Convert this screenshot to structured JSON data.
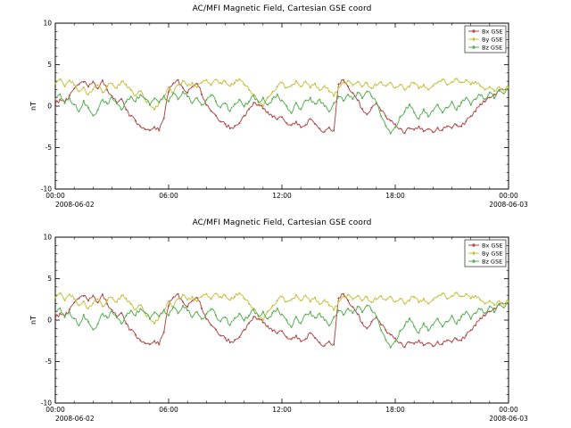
{
  "figure": {
    "background": "#ffffff"
  },
  "chart_data": [
    {
      "type": "line",
      "title": "AC/MFI  Magnetic Field, Cartesian GSE coord",
      "ylabel": "nT",
      "ylim": [
        -10,
        10
      ],
      "y_major_ticks": [
        "10",
        "5",
        "0",
        "-5",
        "-10"
      ],
      "x_major_ticks": [
        "00:00",
        "06:00",
        "12:00",
        "18:00",
        "00:00"
      ],
      "x_major_hours": [
        0,
        6,
        12,
        18,
        24
      ],
      "x_start_date": "2008-06-02",
      "x_end_date": "2008-06-03",
      "x_start_hour": 0,
      "x_step_hours": 0.25,
      "grid": false,
      "legend_position": "top-right",
      "series": [
        {
          "name": "Bx GSE",
          "color": "#b34a48",
          "values": [
            0.3,
            0.8,
            0.5,
            1.2,
            2.2,
            2.6,
            3.0,
            2.4,
            2.9,
            2.2,
            3.1,
            2.0,
            1.2,
            0.4,
            0.8,
            -0.5,
            -1.2,
            -1.8,
            -2.4,
            -2.8,
            -3.0,
            -2.6,
            -2.9,
            -1.5,
            1.8,
            2.8,
            3.1,
            2.2,
            1.6,
            2.4,
            2.7,
            1.5,
            0.2,
            -0.6,
            -1.2,
            -1.8,
            -2.2,
            -2.6,
            -2.4,
            -2.0,
            -1.2,
            -0.4,
            0.4,
            0.2,
            -0.3,
            -0.8,
            -1.2,
            -1.6,
            -1.4,
            -2.0,
            -2.4,
            -1.8,
            -2.6,
            -2.2,
            -1.6,
            -2.2,
            -2.8,
            -3.1,
            -2.6,
            -2.9,
            2.6,
            3.1,
            2.4,
            1.6,
            0.8,
            -0.4,
            -1.0,
            -0.2,
            0.4,
            -0.5,
            -1.2,
            -1.8,
            -2.2,
            -2.8,
            -3.2,
            -2.6,
            -2.9,
            -2.5,
            -3.0,
            -2.8,
            -3.1,
            -2.7,
            -2.9,
            -2.5,
            -2.6,
            -2.2,
            -2.4,
            -1.8,
            -1.2,
            -0.6,
            0.2,
            0.6,
            1.0,
            1.4,
            1.8,
            2.0,
            2.2
          ]
        },
        {
          "name": "By GSE",
          "color": "#c6c23f",
          "values": [
            2.8,
            3.2,
            2.4,
            3.0,
            2.6,
            1.8,
            2.2,
            1.4,
            2.0,
            2.6,
            1.6,
            2.4,
            2.8,
            2.2,
            3.0,
            2.6,
            2.0,
            1.2,
            1.8,
            0.8,
            0.2,
            -0.4,
            0.4,
            1.2,
            2.2,
            1.6,
            2.6,
            3.0,
            2.4,
            2.8,
            2.2,
            2.9,
            3.1,
            2.6,
            3.2,
            2.8,
            3.0,
            2.4,
            2.8,
            3.2,
            2.6,
            2.0,
            1.4,
            0.6,
            0.0,
            1.0,
            1.8,
            2.4,
            2.8,
            2.2,
            2.6,
            3.0,
            2.4,
            2.9,
            2.2,
            2.7,
            2.0,
            2.5,
            1.8,
            1.2,
            2.2,
            2.8,
            3.1,
            2.6,
            3.0,
            2.4,
            2.8,
            2.2,
            2.6,
            3.0,
            2.4,
            2.8,
            2.2,
            2.6,
            2.0,
            2.4,
            2.8,
            2.2,
            2.6,
            2.0,
            2.4,
            2.9,
            3.2,
            2.6,
            3.0,
            3.3,
            2.8,
            3.1,
            2.6,
            3.0,
            2.4,
            2.0,
            2.4,
            1.8,
            2.2,
            2.0,
            2.3
          ]
        },
        {
          "name": "Bz GSE",
          "color": "#56b152",
          "values": [
            0.8,
            1.4,
            0.4,
            1.0,
            0.2,
            -0.6,
            0.6,
            -0.2,
            -1.2,
            -0.4,
            0.8,
            0.2,
            1.0,
            0.4,
            -0.4,
            0.6,
            1.2,
            0.6,
            1.4,
            0.8,
            0.2,
            1.0,
            0.4,
            1.2,
            0.6,
            1.6,
            0.8,
            1.8,
            1.2,
            0.4,
            1.0,
            0.2,
            0.8,
            1.4,
            0.6,
            -0.2,
            0.4,
            -0.6,
            0.2,
            0.8,
            0.0,
            0.6,
            1.2,
            0.4,
            1.0,
            0.2,
            0.8,
            1.4,
            0.6,
            0.0,
            -0.8,
            0.4,
            -0.4,
            0.6,
            1.0,
            0.2,
            0.8,
            0.0,
            -0.6,
            0.4,
            1.2,
            0.6,
            1.4,
            0.8,
            1.6,
            1.0,
            1.8,
            1.2,
            0.4,
            -1.2,
            -2.4,
            -3.2,
            -2.6,
            -1.4,
            -0.6,
            0.2,
            -0.8,
            -1.6,
            -0.4,
            -1.2,
            -0.6,
            0.2,
            -0.8,
            -0.2,
            0.6,
            -0.4,
            0.4,
            1.0,
            0.2,
            0.8,
            1.4,
            0.8,
            1.6,
            1.0,
            2.0,
            1.6,
            2.1
          ]
        }
      ]
    },
    {
      "type": "line",
      "title": "AC/MFI  Magnetic Field, Cartesian GSE coord",
      "ylabel": "nT",
      "ylim": [
        -10,
        10
      ],
      "y_major_ticks": [
        "10",
        "5",
        "0",
        "-5",
        "-10"
      ],
      "x_major_ticks": [
        "00:00",
        "06:00",
        "12:00",
        "18:00",
        "00:00"
      ],
      "x_major_hours": [
        0,
        6,
        12,
        18,
        24
      ],
      "x_start_date": "2008-06-02",
      "x_end_date": "2008-06-03",
      "x_start_hour": 0,
      "x_step_hours": 0.25,
      "grid": false,
      "legend_position": "top-right",
      "series": [
        {
          "name": "Bx GSE",
          "color": "#b34a48",
          "values": [
            0.3,
            0.8,
            0.5,
            1.2,
            2.2,
            2.6,
            3.0,
            2.4,
            2.9,
            2.2,
            3.1,
            2.0,
            1.2,
            0.4,
            0.8,
            -0.5,
            -1.2,
            -1.8,
            -2.4,
            -2.8,
            -3.0,
            -2.6,
            -2.9,
            -1.5,
            1.8,
            2.8,
            3.1,
            2.2,
            1.6,
            2.4,
            2.7,
            1.5,
            0.2,
            -0.6,
            -1.2,
            -1.8,
            -2.2,
            -2.6,
            -2.4,
            -2.0,
            -1.2,
            -0.4,
            0.4,
            0.2,
            -0.3,
            -0.8,
            -1.2,
            -1.6,
            -1.4,
            -2.0,
            -2.4,
            -1.8,
            -2.6,
            -2.2,
            -1.6,
            -2.2,
            -2.8,
            -3.1,
            -2.6,
            -2.9,
            2.6,
            3.1,
            2.4,
            1.6,
            0.8,
            -0.4,
            -1.0,
            -0.2,
            0.4,
            -0.5,
            -1.2,
            -1.8,
            -2.2,
            -2.8,
            -3.2,
            -2.6,
            -2.9,
            -2.5,
            -3.0,
            -2.8,
            -3.1,
            -2.7,
            -2.9,
            -2.5,
            -2.6,
            -2.2,
            -2.4,
            -1.8,
            -1.2,
            -0.6,
            0.2,
            0.6,
            1.0,
            1.4,
            1.8,
            2.0,
            2.2
          ]
        },
        {
          "name": "By GSE",
          "color": "#c6c23f",
          "values": [
            2.8,
            3.2,
            2.4,
            3.0,
            2.6,
            1.8,
            2.2,
            1.4,
            2.0,
            2.6,
            1.6,
            2.4,
            2.8,
            2.2,
            3.0,
            2.6,
            2.0,
            1.2,
            1.8,
            0.8,
            0.2,
            -0.4,
            0.4,
            1.2,
            2.2,
            1.6,
            2.6,
            3.0,
            2.4,
            2.8,
            2.2,
            2.9,
            3.1,
            2.6,
            3.2,
            2.8,
            3.0,
            2.4,
            2.8,
            3.2,
            2.6,
            2.0,
            1.4,
            0.6,
            0.0,
            1.0,
            1.8,
            2.4,
            2.8,
            2.2,
            2.6,
            3.0,
            2.4,
            2.9,
            2.2,
            2.7,
            2.0,
            2.5,
            1.8,
            1.2,
            2.2,
            2.8,
            3.1,
            2.6,
            3.0,
            2.4,
            2.8,
            2.2,
            2.6,
            3.0,
            2.4,
            2.8,
            2.2,
            2.6,
            2.0,
            2.4,
            2.8,
            2.2,
            2.6,
            2.0,
            2.4,
            2.9,
            3.2,
            2.6,
            3.0,
            3.3,
            2.8,
            3.1,
            2.6,
            3.0,
            2.4,
            2.0,
            2.4,
            1.8,
            2.2,
            2.0,
            2.3
          ]
        },
        {
          "name": "Bz GSE",
          "color": "#56b152",
          "values": [
            0.8,
            1.4,
            0.4,
            1.0,
            0.2,
            -0.6,
            0.6,
            -0.2,
            -1.2,
            -0.4,
            0.8,
            0.2,
            1.0,
            0.4,
            -0.4,
            0.6,
            1.2,
            0.6,
            1.4,
            0.8,
            0.2,
            1.0,
            0.4,
            1.2,
            0.6,
            1.6,
            0.8,
            1.8,
            1.2,
            0.4,
            1.0,
            0.2,
            0.8,
            1.4,
            0.6,
            -0.2,
            0.4,
            -0.6,
            0.2,
            0.8,
            0.0,
            0.6,
            1.2,
            0.4,
            1.0,
            0.2,
            0.8,
            1.4,
            0.6,
            0.0,
            -0.8,
            0.4,
            -0.4,
            0.6,
            1.0,
            0.2,
            0.8,
            0.0,
            -0.6,
            0.4,
            1.2,
            0.6,
            1.4,
            0.8,
            1.6,
            1.0,
            1.8,
            1.2,
            0.4,
            -1.2,
            -2.4,
            -3.2,
            -2.6,
            -1.4,
            -0.6,
            0.2,
            -0.8,
            -1.6,
            -0.4,
            -1.2,
            -0.6,
            0.2,
            -0.8,
            -0.2,
            0.6,
            -0.4,
            0.4,
            1.0,
            0.2,
            0.8,
            1.4,
            0.8,
            1.6,
            1.0,
            2.0,
            1.6,
            2.1
          ]
        }
      ]
    }
  ]
}
